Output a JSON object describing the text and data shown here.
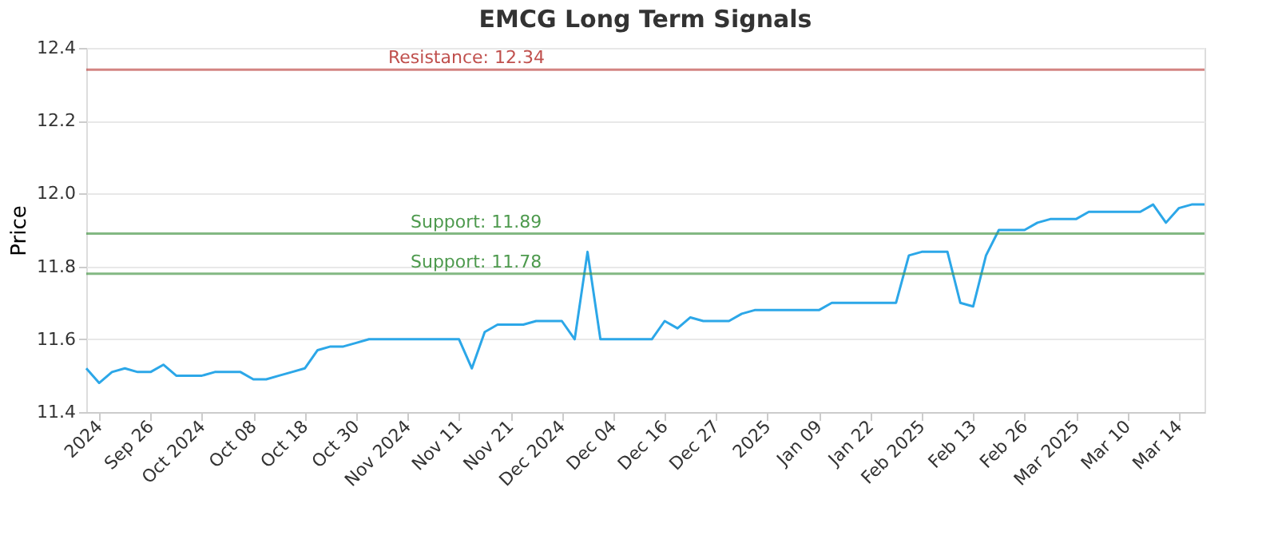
{
  "chart_data": {
    "type": "line",
    "title": "EMCG Long Term Signals",
    "ylabel": "Price",
    "categories": [
      null,
      "2024",
      null,
      null,
      null,
      "Sep 26",
      null,
      null,
      null,
      "Oct 2024",
      null,
      null,
      null,
      "Oct 08",
      null,
      null,
      null,
      "Oct 18",
      null,
      null,
      null,
      "Oct 30",
      null,
      null,
      null,
      "Nov 2024",
      null,
      null,
      null,
      "Nov 11",
      null,
      null,
      null,
      "Nov 21",
      null,
      null,
      null,
      "Dec 2024",
      null,
      null,
      null,
      "Dec 04",
      null,
      null,
      null,
      "Dec 16",
      null,
      null,
      null,
      "Dec 27",
      null,
      null,
      null,
      "2025",
      null,
      null,
      null,
      "Jan 09",
      null,
      null,
      null,
      "Jan 22",
      null,
      null,
      null,
      "Feb 2025",
      null,
      null,
      null,
      "Feb 13",
      null,
      null,
      null,
      "Feb 26",
      null,
      null,
      null,
      "Mar 2025",
      null,
      null,
      null,
      "Mar 10",
      null,
      null,
      null,
      "Mar 14",
      null,
      null
    ],
    "series": [
      {
        "color": "#2ca7e8",
        "values": [
          11.52,
          11.48,
          11.51,
          11.52,
          11.51,
          11.51,
          11.53,
          11.5,
          11.5,
          11.5,
          11.51,
          11.51,
          11.51,
          11.49,
          11.49,
          11.5,
          11.51,
          11.52,
          11.57,
          11.58,
          11.58,
          11.59,
          11.6,
          11.6,
          11.6,
          11.6,
          11.6,
          11.6,
          11.6,
          11.6,
          11.52,
          11.62,
          11.64,
          11.64,
          11.64,
          11.65,
          11.65,
          11.65,
          11.6,
          11.84,
          11.6,
          11.6,
          11.6,
          11.6,
          11.6,
          11.65,
          11.63,
          11.66,
          11.65,
          11.65,
          11.65,
          11.67,
          11.68,
          11.68,
          11.68,
          11.68,
          11.68,
          11.68,
          11.7,
          11.7,
          11.7,
          11.7,
          11.7,
          11.7,
          11.83,
          11.84,
          11.84,
          11.84,
          11.7,
          11.69,
          11.83,
          11.9,
          11.9,
          11.9,
          11.92,
          11.93,
          11.93,
          11.93,
          11.95,
          11.95,
          11.95,
          11.95,
          11.95,
          11.97,
          11.92,
          11.96,
          11.97,
          11.97
        ]
      }
    ],
    "ylim": [
      11.4,
      12.4
    ],
    "yticks": [
      11.4,
      11.6,
      11.8,
      {
        "value": 12.0,
        "label": "12.0"
      },
      12.2,
      12.4
    ],
    "ref_lines": [
      {
        "axis": "y",
        "value": 12.34,
        "label": "Resistance: 12.34",
        "color": "#c0504d"
      },
      {
        "axis": "y",
        "value": 11.89,
        "label": "Support: 11.89",
        "color": "#4e9a4e"
      },
      {
        "axis": "y",
        "value": 11.78,
        "label": "Support: 11.78",
        "color": "#4e9a4e"
      }
    ],
    "grid": "y",
    "marker": "none",
    "line_style": "solid"
  }
}
